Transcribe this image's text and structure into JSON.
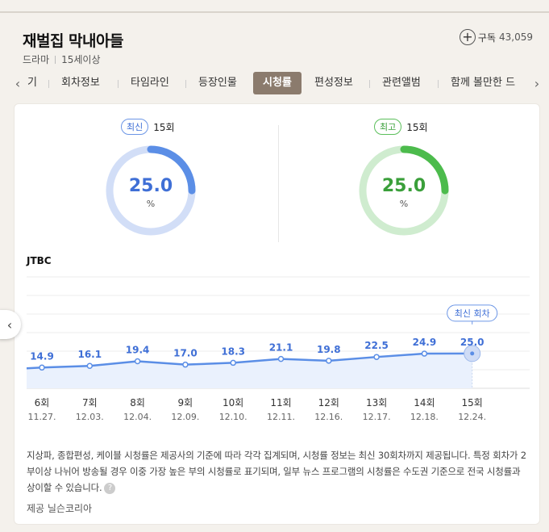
{
  "header": {
    "title": "재벌집 막내아들",
    "genre": "드라마",
    "rating": "15세이상",
    "subscribe_label": "구독",
    "subscribe_count": "43,059"
  },
  "tabs": [
    {
      "label": "기"
    },
    {
      "label": "회차정보"
    },
    {
      "label": "타임라인"
    },
    {
      "label": "등장인물"
    },
    {
      "label": "시청률"
    },
    {
      "label": "편성정보"
    },
    {
      "label": "관련앨범"
    },
    {
      "label": "함께 볼만한 드"
    }
  ],
  "active_tab": "시청률",
  "icons": {
    "tab_prev": "chevron-left-icon",
    "tab_next": "chevron-right-icon",
    "subscribe": "plus-circle-icon",
    "help": "question-circle-icon",
    "side_prev": "chevron-left-icon"
  },
  "summary": {
    "latest": {
      "badge": "최신",
      "episode": "15회",
      "value": "25.0",
      "unit": "%",
      "ratio": 0.25,
      "color": "#5b8ee6",
      "track": "#d2def7"
    },
    "best": {
      "badge": "최고",
      "episode": "15회",
      "value": "25.0",
      "unit": "%",
      "ratio": 0.25,
      "color": "#4cbb4c",
      "track": "#cfeccf"
    }
  },
  "station": "JTBC",
  "chart_data": {
    "type": "area",
    "categories": [
      "6회",
      "7회",
      "8회",
      "9회",
      "10회",
      "11회",
      "12회",
      "13회",
      "14회",
      "15회"
    ],
    "dates": [
      "11.27.",
      "12.03.",
      "12.04.",
      "12.09.",
      "12.10.",
      "12.11.",
      "12.16.",
      "12.17.",
      "12.18.",
      "12.24."
    ],
    "values": [
      14.9,
      16.1,
      19.4,
      17.0,
      18.3,
      21.1,
      19.8,
      22.5,
      24.9,
      25.0
    ],
    "value_labels": [
      "14.9",
      "16.1",
      "19.4",
      "17.0",
      "18.3",
      "21.1",
      "19.8",
      "22.5",
      "24.9",
      "25.0"
    ],
    "highlight_label": "최신 회차",
    "ylim": [
      0,
      80
    ],
    "line_color": "#5b8ee6",
    "fill_color": "#eaf1fd",
    "grid": true
  },
  "note": "지상파, 종합편성, 케이블 시청률은 제공사의 기준에 따라 각각 집계되며, 시청률 정보는 최신 30회차까지 제공됩니다. 특정 회차가 2부이상 나뉘어 방송될 경우 이중 가장 높은 부의 시청률로 표기되며, 일부 뉴스 프로그램의 시청률은 수도권 기준으로 전국 시청률과 상이할 수 있습니다.",
  "source": "제공 닐슨코리아"
}
